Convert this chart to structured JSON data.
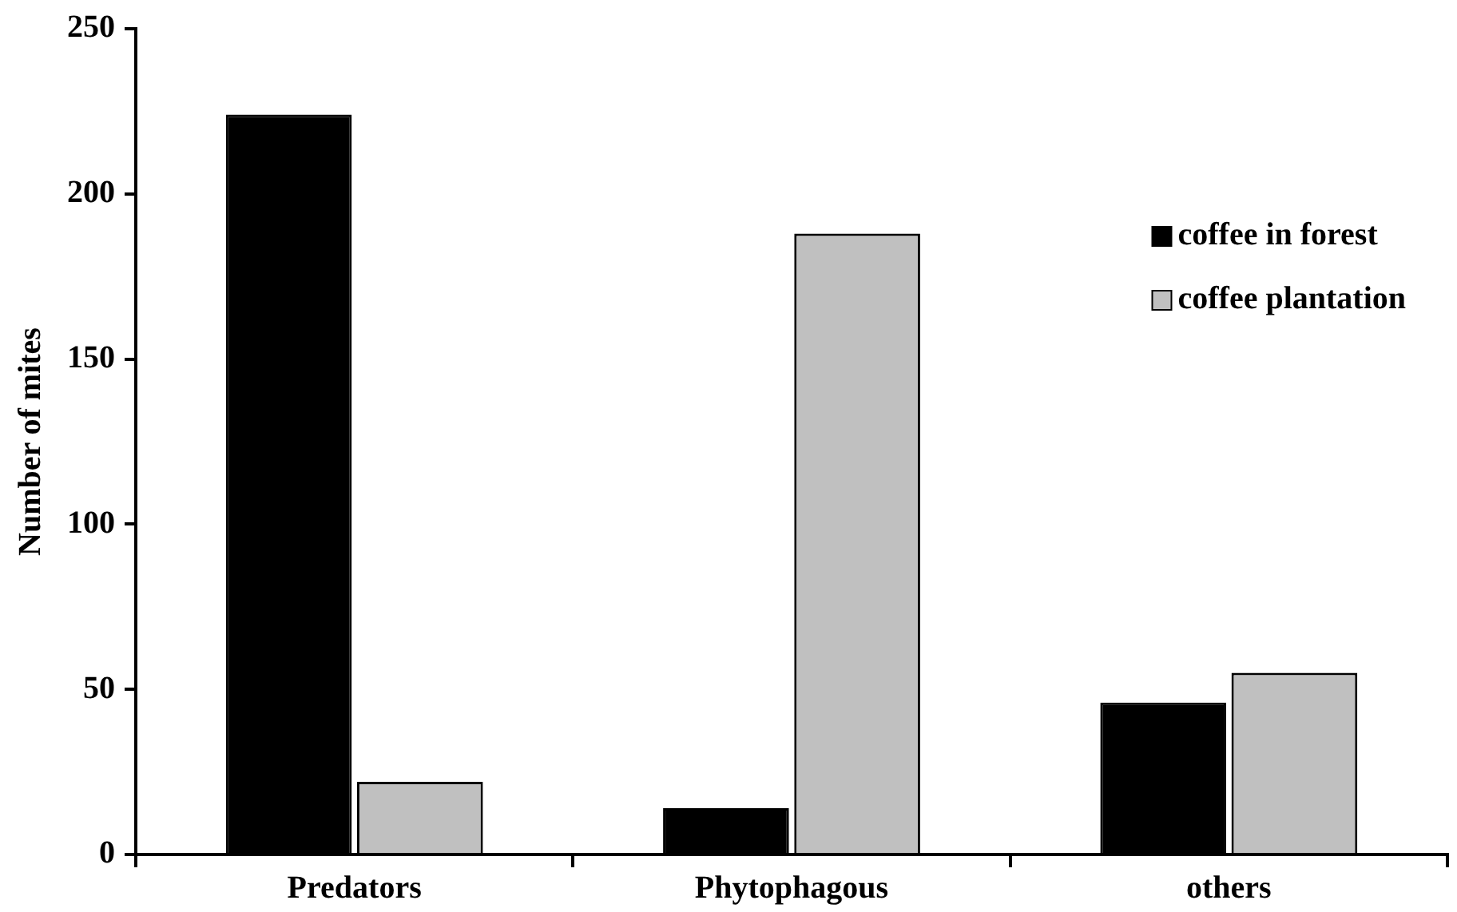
{
  "chart_data": {
    "type": "bar",
    "ylabel": "Number of mites",
    "categories": [
      "Predators",
      "Phytophagous",
      "others"
    ],
    "series": [
      {
        "name": "coffee in forest",
        "color": "#000000",
        "values": [
          224,
          14,
          46
        ]
      },
      {
        "name": "coffee plantation",
        "color": "#c0c0c0",
        "values": [
          22,
          188,
          55
        ]
      }
    ],
    "ylim": [
      0,
      250
    ],
    "yticks": [
      0,
      50,
      100,
      150,
      200,
      250
    ],
    "grid": false,
    "legend": "right"
  }
}
